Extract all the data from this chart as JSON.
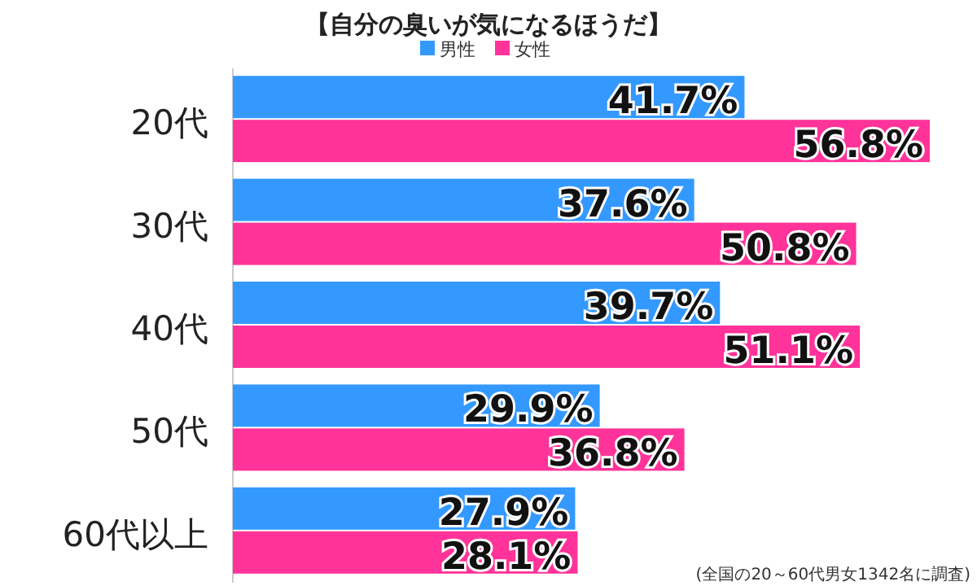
{
  "chart_data": {
    "type": "bar",
    "orientation": "horizontal",
    "title": "【自分の臭いが気になるほうだ】",
    "categories": [
      "20代",
      "30代",
      "40代",
      "50代",
      "60代以上"
    ],
    "series": [
      {
        "name": "男性",
        "color": "#3399ff",
        "values": [
          41.7,
          37.6,
          39.7,
          29.9,
          27.9
        ],
        "value_labels": [
          "41.7%",
          "37.6%",
          "39.7%",
          "29.9%",
          "27.9%"
        ]
      },
      {
        "name": "女性",
        "color": "#ff3399",
        "values": [
          56.8,
          50.8,
          51.1,
          36.8,
          28.1
        ],
        "value_labels": [
          "56.8%",
          "50.8%",
          "51.1%",
          "36.8%",
          "28.1%"
        ]
      }
    ],
    "legend": "top",
    "annotations": [
      "(全国の20～60代男女1342名に調査)"
    ]
  }
}
